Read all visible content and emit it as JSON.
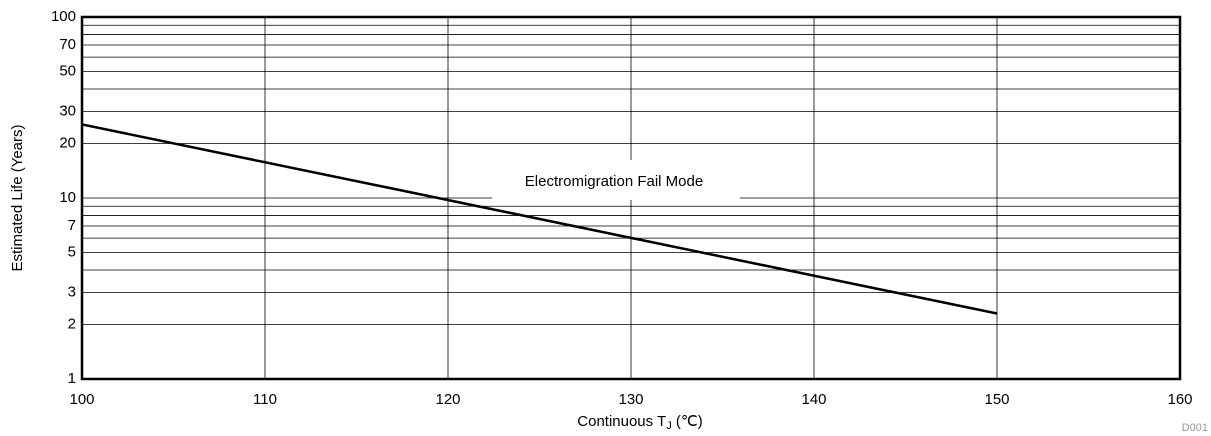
{
  "chart_data": {
    "type": "line",
    "xlabel": [
      "Continuous T",
      "J",
      " (℃)"
    ],
    "ylabel": "Estimated Life (Years)",
    "annotation": "Electromigration Fail Mode",
    "figure_id": "D001",
    "x": [
      100,
      150
    ],
    "series": [
      {
        "name": "Electromigration Fail Mode",
        "color": "#000000",
        "values": [
          25.5,
          2.3
        ]
      }
    ],
    "xlim": [
      100,
      160
    ],
    "xticks": [
      100,
      110,
      120,
      130,
      140,
      150,
      160
    ],
    "ylim": [
      1,
      100
    ],
    "yticks": [
      1,
      2,
      3,
      5,
      7,
      10,
      20,
      30,
      50,
      70,
      100
    ],
    "minor_yticks": [
      4,
      6,
      8,
      9,
      40,
      60,
      80,
      90
    ],
    "ylog": true,
    "grid": true
  }
}
